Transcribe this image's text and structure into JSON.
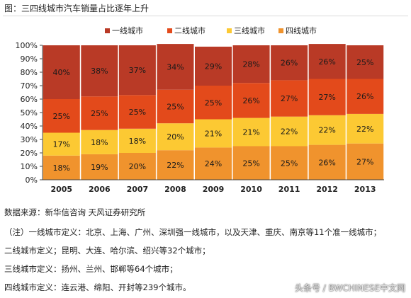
{
  "title": "图：三四线城市汽车销量占比逐年上升",
  "chart_data": {
    "type": "bar",
    "stacked": true,
    "percent": true,
    "categories": [
      "2005",
      "2006",
      "2007",
      "2008",
      "2009",
      "2010",
      "2011",
      "2012",
      "2013"
    ],
    "series": [
      {
        "name": "一线城市",
        "color": "#b93a26",
        "values": [
          40,
          38,
          37,
          34,
          29,
          28,
          26,
          26,
          25
        ]
      },
      {
        "name": "二线城市",
        "color": "#e34a1b",
        "values": [
          25,
          25,
          25,
          25,
          25,
          26,
          27,
          27,
          26
        ]
      },
      {
        "name": "三线城市",
        "color": "#fcc933",
        "values": [
          17,
          18,
          18,
          20,
          21,
          21,
          22,
          22,
          22
        ]
      },
      {
        "name": "四线城市",
        "color": "#f0932d",
        "values": [
          18,
          19,
          20,
          22,
          24,
          25,
          25,
          26,
          27
        ]
      }
    ],
    "ylim": [
      0,
      100
    ],
    "yticks": [
      "0%",
      "10%",
      "20%",
      "30%",
      "40%",
      "50%",
      "60%",
      "70%",
      "80%",
      "90%",
      "100%"
    ],
    "legend_position": "top",
    "grid": false
  },
  "notes": {
    "source": "数据来源：新华信咨询 天风证券研究所",
    "tier1": "（注）一线城市定义：北京、上海、广州、深圳强一线城市，以及天津、重庆、南京等11个准一线城市；",
    "tier2": "二线城市定义；昆明、大连、哈尔滨、绍兴等32个城市；",
    "tier3": "三线城市定义：扬州、兰州、邯郸等64个城市；",
    "tier4": "四线城市定义：连云港、绵阳、开封等239个城市。"
  },
  "watermark": "头条号 / BWCHINESE中文网"
}
